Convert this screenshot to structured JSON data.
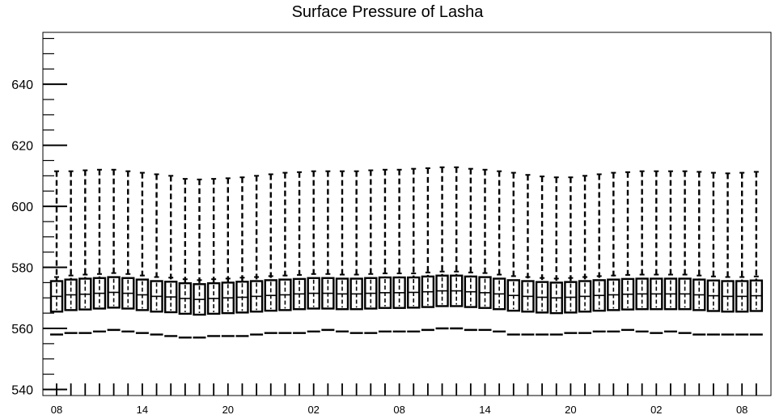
{
  "chart_data": {
    "type": "box",
    "title": "Surface Pressure of Lasha",
    "xlabel": "",
    "ylabel": "",
    "ylim": [
      538,
      657
    ],
    "yticks": [
      540,
      560,
      580,
      600,
      620,
      640
    ],
    "xtick_labels": [
      "08",
      "14",
      "20",
      "02",
      "08",
      "14",
      "20",
      "02",
      "08"
    ],
    "series": [
      {
        "name": "",
        "whisker_high": [
          611.5,
          611.5,
          611.8,
          612.0,
          612.0,
          611.5,
          611.0,
          610.5,
          610.0,
          609.0,
          608.8,
          609.0,
          609.2,
          609.5,
          610.0,
          610.5,
          611.0,
          611.2,
          611.5,
          611.5,
          611.5,
          611.5,
          611.8,
          612.0,
          612.0,
          612.3,
          612.5,
          612.8,
          612.8,
          612.3,
          612.0,
          611.5,
          611.0,
          610.3,
          609.8,
          609.5,
          609.5,
          610.0,
          610.5,
          611.0,
          611.2,
          611.5,
          611.5,
          611.5,
          611.5,
          611.3,
          611.0,
          610.8,
          611.0,
          611.3
        ],
        "q3": [
          575.5,
          576.0,
          576.3,
          576.5,
          576.8,
          576.5,
          576.0,
          575.5,
          575.3,
          574.8,
          574.5,
          574.8,
          575.0,
          575.3,
          575.5,
          575.8,
          576.0,
          576.2,
          576.5,
          576.5,
          576.3,
          576.3,
          576.5,
          576.7,
          576.7,
          576.7,
          577.0,
          577.3,
          577.3,
          577.0,
          576.8,
          576.3,
          575.8,
          575.5,
          575.2,
          575.0,
          575.2,
          575.5,
          575.8,
          576.0,
          576.2,
          576.3,
          576.3,
          576.3,
          576.3,
          576.0,
          575.7,
          575.5,
          575.5,
          575.7
        ],
        "median": [
          570.5,
          571.0,
          571.2,
          571.5,
          571.8,
          571.5,
          571.0,
          570.5,
          570.3,
          569.8,
          569.5,
          569.8,
          570.0,
          570.2,
          570.5,
          570.8,
          571.0,
          571.3,
          571.5,
          571.5,
          571.3,
          571.3,
          571.5,
          571.7,
          571.7,
          571.8,
          572.0,
          572.3,
          572.3,
          572.0,
          571.7,
          571.3,
          570.8,
          570.5,
          570.2,
          570.0,
          570.2,
          570.5,
          570.8,
          571.0,
          571.2,
          571.3,
          571.3,
          571.3,
          571.3,
          571.0,
          570.7,
          570.5,
          570.5,
          570.7
        ],
        "q1": [
          565.5,
          566.0,
          566.2,
          566.5,
          566.8,
          566.5,
          566.0,
          565.5,
          565.3,
          564.8,
          564.5,
          564.8,
          565.0,
          565.2,
          565.5,
          565.8,
          566.0,
          566.3,
          566.5,
          566.5,
          566.3,
          566.3,
          566.5,
          566.7,
          566.7,
          566.8,
          567.0,
          567.3,
          567.3,
          567.0,
          566.7,
          566.3,
          565.8,
          565.5,
          565.2,
          565.0,
          565.2,
          565.5,
          565.8,
          566.0,
          566.2,
          566.3,
          566.3,
          566.3,
          566.3,
          566.0,
          565.7,
          565.5,
          565.5,
          565.7
        ],
        "whisker_low": [
          558.0,
          558.5,
          558.5,
          559.0,
          559.5,
          559.0,
          558.5,
          558.0,
          557.5,
          557.0,
          557.0,
          557.5,
          557.5,
          557.5,
          558.0,
          558.5,
          558.5,
          558.5,
          559.0,
          559.5,
          559.0,
          558.5,
          558.5,
          559.0,
          559.0,
          559.0,
          559.5,
          560.0,
          560.0,
          559.5,
          559.5,
          559.0,
          558.0,
          558.0,
          558.0,
          558.0,
          558.5,
          558.5,
          559.0,
          559.0,
          559.5,
          559.0,
          558.5,
          559.0,
          558.5,
          558.0,
          558.0,
          558.0,
          558.0,
          558.0
        ]
      }
    ],
    "grid": false,
    "legend": "none"
  }
}
